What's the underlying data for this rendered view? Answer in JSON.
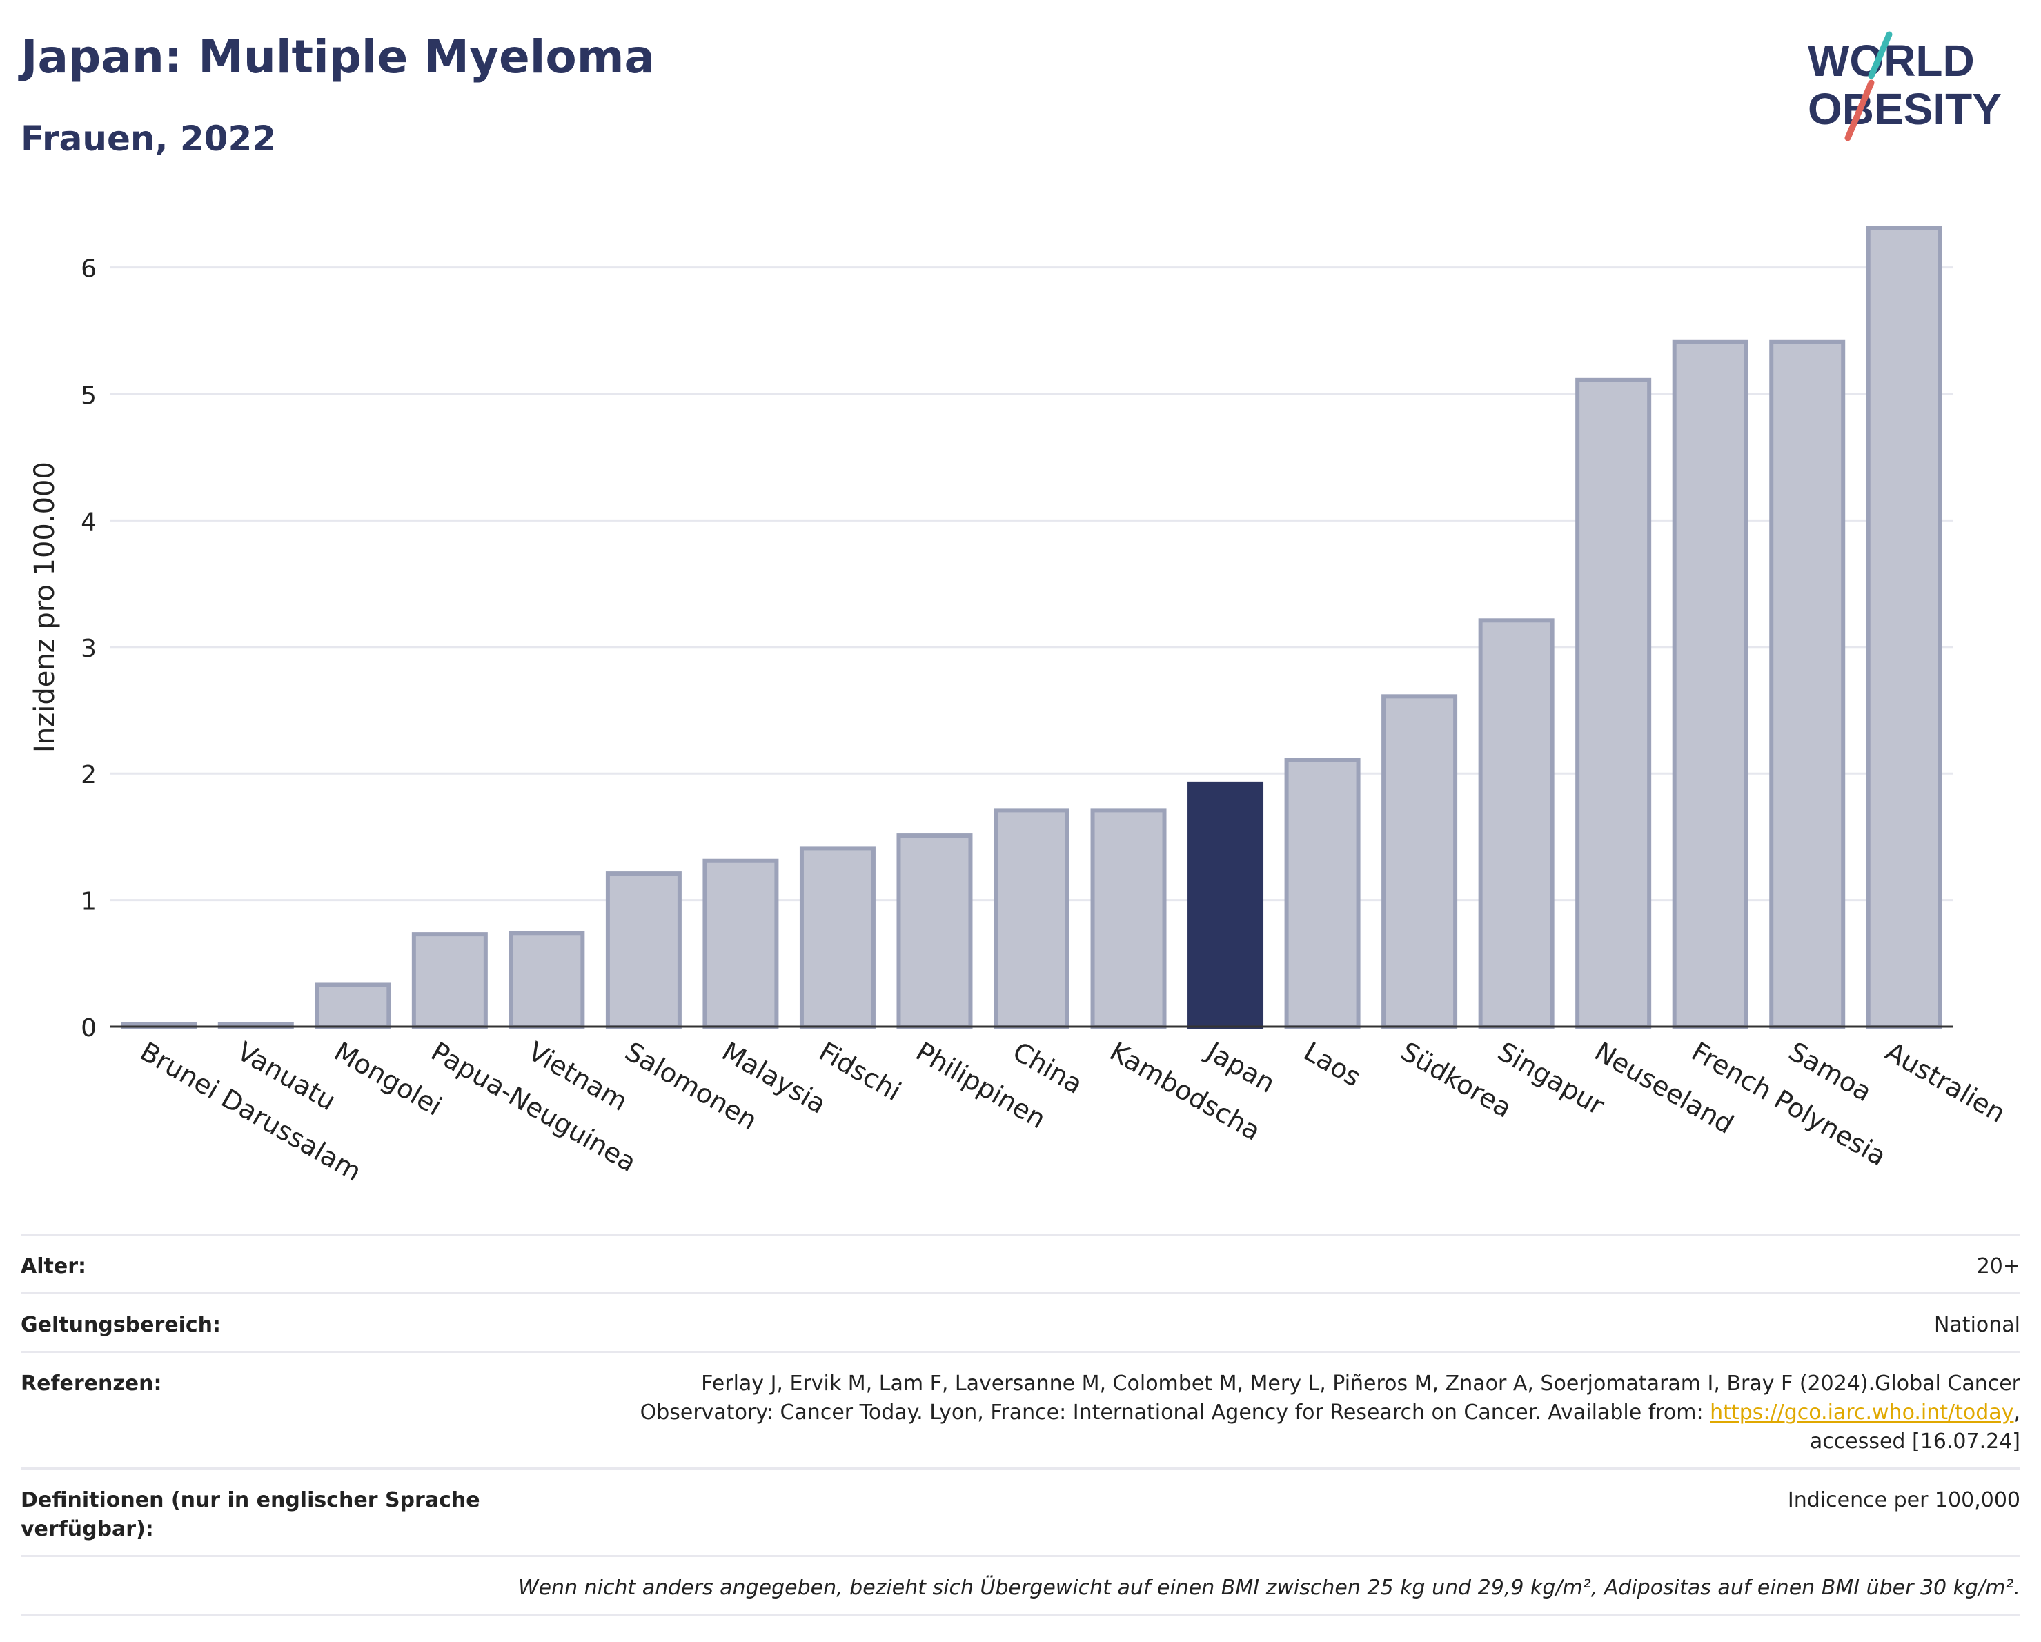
{
  "header": {
    "title": "Japan: Multiple Myeloma",
    "subtitle": "Frauen, 2022"
  },
  "logo": {
    "line1": "WORLD",
    "line2": "OBESITY"
  },
  "chart_data": {
    "type": "bar",
    "ylabel": "Inzidenz pro 100.000",
    "xlabel": "",
    "ylim": [
      0,
      6.5
    ],
    "yticks": [
      0,
      1,
      2,
      3,
      4,
      5,
      6
    ],
    "grid": true,
    "highlight": "Japan",
    "colors": {
      "bar": "#c0c3d0",
      "bar_border": "#9ca2b9",
      "highlight": "#2c3560"
    },
    "categories": [
      "Brunei Darussalam",
      "Vanuatu",
      "Mongolei",
      "Papua-Neuguinea",
      "Vietnam",
      "Salomonen",
      "Malaysia",
      "Fidschi",
      "Philippinen",
      "China",
      "Kambodscha",
      "Japan",
      "Laos",
      "Südkorea",
      "Singapur",
      "Neuseeland",
      "French Polynesia",
      "Samoa",
      "Australien"
    ],
    "values": [
      0.02,
      0.02,
      0.33,
      0.73,
      0.74,
      1.21,
      1.31,
      1.41,
      1.51,
      1.71,
      1.71,
      1.92,
      2.11,
      2.61,
      3.21,
      5.11,
      5.41,
      5.41,
      6.31
    ]
  },
  "info": {
    "age_label": "Alter:",
    "age_value": "20+",
    "scope_label": "Geltungsbereich:",
    "scope_value": "National",
    "ref_label": "Referenzen:",
    "ref_line1": "Ferlay J, Ervik M, Lam F, Laversanne M, Colombet M, Mery L, Piñeros M, Znaor A, Soerjomataram I, Bray F (2024).Global Cancer",
    "ref_line2": "Observatory: Cancer Today. Lyon, France: International Agency for Research on Cancer. Available from: ",
    "ref_link": "https://gco.iarc.who.int/today",
    "ref_line2_end": ",",
    "ref_line3": "accessed [16.07.24]",
    "def_label": "Definitionen (nur in englischer Sprache verfügbar):",
    "def_value": "Indicence per 100,000",
    "note": "Wenn nicht anders angegeben, bezieht sich Übergewicht auf einen BMI zwischen 25 kg und 29,9 kg/m², Adipositas auf einen BMI über 30 kg/m²."
  }
}
